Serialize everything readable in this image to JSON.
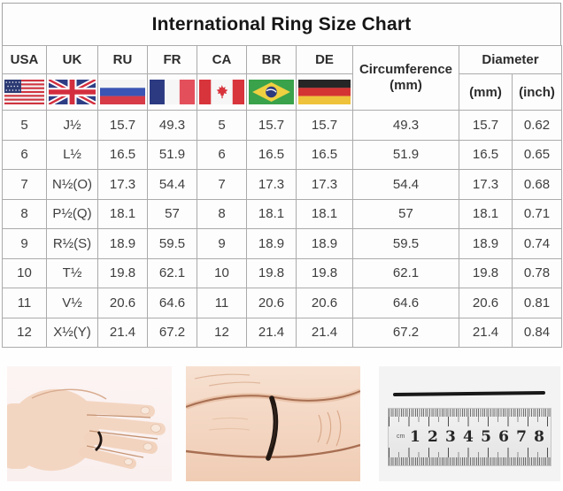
{
  "title": "International Ring Size Chart",
  "table": {
    "country_columns": [
      "USA",
      "UK",
      "RU",
      "FR",
      "CA",
      "BR",
      "DE"
    ],
    "flag_icons": [
      "usa-flag",
      "uk-flag",
      "russia-flag",
      "france-flag",
      "canada-flag",
      "brazil-flag",
      "germany-flag"
    ],
    "circumference_header": {
      "line1": "Circumference",
      "line2": "(mm)"
    },
    "diameter_header": {
      "label": "Diameter",
      "sub_mm": "(mm)",
      "sub_inch": "(inch)"
    },
    "rows": [
      [
        "5",
        "J½",
        "15.7",
        "49.3",
        "5",
        "15.7",
        "15.7",
        "49.3",
        "15.7",
        "0.62"
      ],
      [
        "6",
        "L½",
        "16.5",
        "51.9",
        "6",
        "16.5",
        "16.5",
        "51.9",
        "16.5",
        "0.65"
      ],
      [
        "7",
        "N½(O)",
        "17.3",
        "54.4",
        "7",
        "17.3",
        "17.3",
        "54.4",
        "17.3",
        "0.68"
      ],
      [
        "8",
        "P½(Q)",
        "18.1",
        "57",
        "8",
        "18.1",
        "18.1",
        "57",
        "18.1",
        "0.71"
      ],
      [
        "9",
        "R½(S)",
        "18.9",
        "59.5",
        "9",
        "18.9",
        "18.9",
        "59.5",
        "18.9",
        "0.74"
      ],
      [
        "10",
        "T½",
        "19.8",
        "62.1",
        "10",
        "19.8",
        "19.8",
        "62.1",
        "19.8",
        "0.78"
      ],
      [
        "11",
        "V½",
        "20.6",
        "64.6",
        "11",
        "20.6",
        "20.6",
        "64.6",
        "20.6",
        "0.81"
      ],
      [
        "12",
        "X½(Y)",
        "21.4",
        "67.2",
        "12",
        "21.4",
        "21.4",
        "67.2",
        "21.4",
        "0.84"
      ]
    ]
  },
  "photos": {
    "hand": {
      "icon": "hand-with-string-photo"
    },
    "closeup": {
      "icon": "finger-string-closeup-photo"
    },
    "ruler": {
      "icon": "string-on-ruler-photo",
      "unit_label": "cm",
      "numbers": [
        "1",
        "2",
        "3",
        "4",
        "5",
        "6",
        "7",
        "8"
      ]
    }
  },
  "colors": {
    "border": "#ababab",
    "text": "#3e3e3e",
    "title_text": "#161616",
    "string_black": "#191919",
    "skin": "#f3d6c2",
    "flag_red": "#d8343c",
    "flag_blue": "#2e3e85",
    "flag_green": "#3aa24b",
    "flag_gold": "#eec23a"
  }
}
